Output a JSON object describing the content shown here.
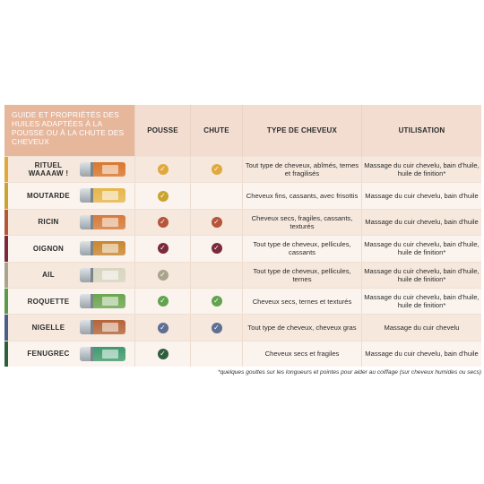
{
  "header": {
    "guide": "GUIDE ET PROPRIÉTÉS DES HUILES ADAPTÉES À LA POUSSE OU À LA CHUTE DES CHEVEUX",
    "pousse": "POUSSE",
    "chute": "CHUTE",
    "type": "TYPE DE CHEVEUX",
    "utilisation": "UTILISATION"
  },
  "rows": [
    {
      "name": "RITUEL WAAAAW !",
      "band": "#e1a83a",
      "bottle": "#d9772e",
      "pousse": true,
      "chute": true,
      "check_color": "#e0a83d",
      "type": "Tout type de cheveux, abîmés, ternes et fragilisés",
      "usage": "Massage du cuir chevelu, bain d'huile, huile de finition*"
    },
    {
      "name": "MOUTARDE",
      "band": "#c9a42f",
      "bottle": "#e6b64a",
      "pousse": true,
      "chute": false,
      "check_color": "#c9a42f",
      "type": "Cheveux fins, cassants, avec frisottis",
      "usage": "Massage du cuir chevelu, bain d'huile"
    },
    {
      "name": "RICIN",
      "band": "#b5553a",
      "bottle": "#d67b3a",
      "pousse": true,
      "chute": true,
      "check_color": "#b5553a",
      "type": "Cheveux secs, fragiles, cassants, texturés",
      "usage": "Massage du cuir chevelu, bain d'huile"
    },
    {
      "name": "OIGNON",
      "band": "#7a2a3a",
      "bottle": "#c9862e",
      "pousse": true,
      "chute": true,
      "check_color": "#7a2a3a",
      "type": "Tout type de cheveux, pellicules, cassants",
      "usage": "Massage du cuir chevelu, bain d'huile, huile de finition*"
    },
    {
      "name": "AIL",
      "band": "#a8a58c",
      "bottle": "#d8d6c2",
      "pousse": true,
      "chute": false,
      "check_color": "#a8a58c",
      "type": "Tout type de cheveux, pellicules, ternes",
      "usage": "Massage du cuir chevelu, bain d'huile, huile de finition*"
    },
    {
      "name": "ROQUETTE",
      "band": "#5a9a4a",
      "bottle": "#6aa54e",
      "pousse": true,
      "chute": true,
      "check_color": "#62a34f",
      "type": "Cheveux secs, ternes et texturés",
      "usage": "Massage du cuir chevelu, bain d'huile, huile de finition*"
    },
    {
      "name": "NIGELLE",
      "band": "#4c5d86",
      "bottle": "#b5653a",
      "pousse": true,
      "chute": true,
      "check_color": "#5d6f94",
      "type": "Tout type de cheveux, cheveux gras",
      "usage": "Massage du cuir chevelu"
    },
    {
      "name": "FENUGREC",
      "band": "#2f5e3e",
      "bottle": "#3e9a6e",
      "pousse": true,
      "chute": false,
      "check_color": "#2f5e3e",
      "type": "Cheveux secs et fragiles",
      "usage": "Massage du cuir chevelu, bain d'huile"
    }
  ],
  "check_icon": "check-circle-icon",
  "footnote": "*quelques gouttes sur les longueurs et pointes pour aider au coiffage (sur cheveux humides ou secs)"
}
